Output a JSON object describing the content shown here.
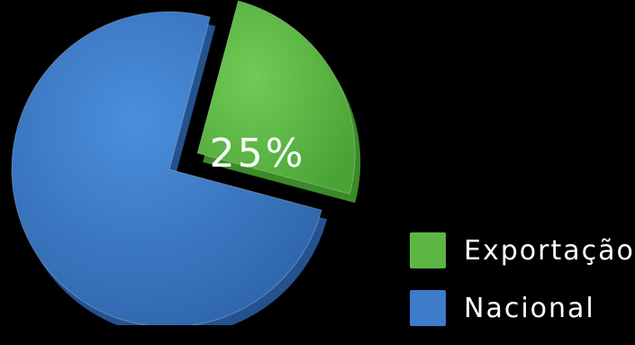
{
  "chart_data": {
    "type": "pie",
    "title": "",
    "slices": [
      {
        "label": "Exportação",
        "value": 25,
        "color": "#5cb644",
        "exploded": true,
        "data_label": "25%"
      },
      {
        "label": "Nacional",
        "value": 75,
        "color": "#3d7cc9",
        "exploded": false,
        "data_label": ""
      }
    ],
    "legend_placement": "bottom-right",
    "style": "3d"
  },
  "legend": {
    "items": [
      {
        "label": "Exportação",
        "color": "#5cb644"
      },
      {
        "label": "Nacional",
        "color": "#3d7cc9"
      }
    ]
  }
}
